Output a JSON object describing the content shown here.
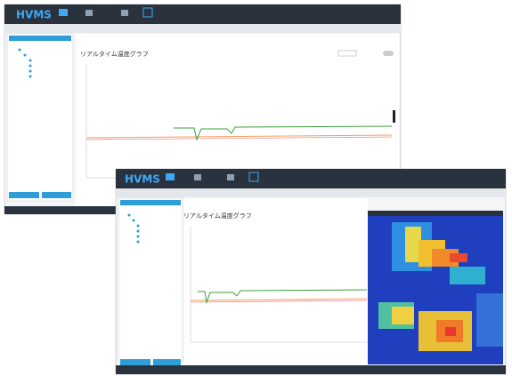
{
  "windows": [
    {
      "app_name": "HVMS",
      "chart_title": "リアルタイム温度グラフ"
    },
    {
      "app_name": "HVMS",
      "chart_title": "リアルタイム温度グラフ"
    }
  ]
}
